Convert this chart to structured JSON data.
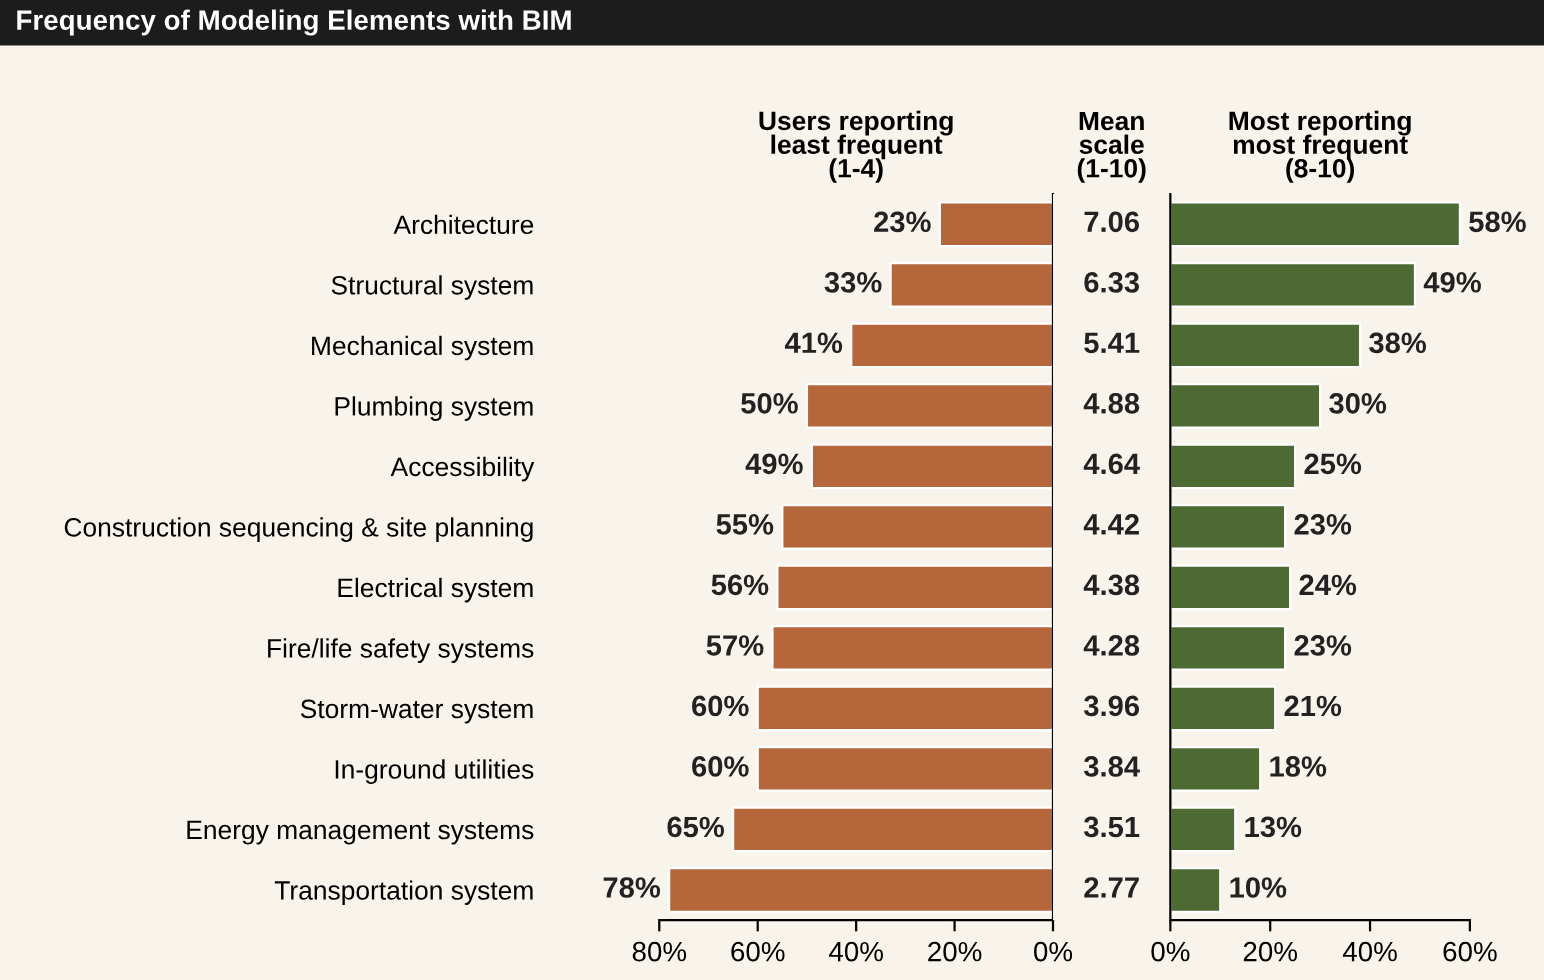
{
  "chart_data": [
    {
      "type": "bar",
      "orientation": "horizontal",
      "title": "Users reporting\nleast frequent\n(1-4)",
      "annotations": [
        "Frequency of Modeling Elements with BIM"
      ],
      "categories": [
        "Architecture",
        "Structural system",
        "Mechanical system",
        "Plumbing system",
        "Accessibility",
        "Construction sequencing & site planning",
        "Electrical system",
        "Fire/life safety systems",
        "Storm-water system",
        "In-ground utilities",
        "Energy management systems",
        "Transportation system"
      ],
      "values": [
        23,
        33,
        41,
        50,
        49,
        55,
        56,
        57,
        60,
        60,
        65,
        78
      ],
      "value_labels": [
        "23%",
        "33%",
        "41%",
        "50%",
        "49%",
        "55%",
        "56%",
        "57%",
        "60%",
        "60%",
        "65%",
        "78%"
      ],
      "color": "#b5663b",
      "xlim": [
        80,
        0
      ],
      "xticks": [
        {
          "value": 80,
          "label": "80%"
        },
        {
          "value": 60,
          "label": "60%"
        },
        {
          "value": 40,
          "label": "40%"
        },
        {
          "value": 20,
          "label": "20%"
        },
        {
          "value": 0,
          "label": "0%"
        }
      ],
      "grid": false,
      "legend": false
    },
    {
      "type": "other",
      "title": "Mean\nscale\n(1-10)",
      "categories": [
        null,
        null,
        null,
        null,
        null,
        null,
        null,
        null,
        null,
        null,
        null,
        null
      ],
      "values": [
        7.06,
        6.33,
        5.41,
        4.88,
        4.64,
        4.42,
        4.38,
        4.28,
        3.96,
        3.84,
        3.51,
        2.77
      ],
      "value_labels": [
        "7.06",
        "6.33",
        "5.41",
        "4.88",
        "4.64",
        "4.42",
        "4.38",
        "4.28",
        "3.96",
        "3.84",
        "3.51",
        "2.77"
      ]
    },
    {
      "type": "bar",
      "orientation": "horizontal",
      "title": "Most reporting\nmost frequent\n(8-10)",
      "categories": [
        null,
        null,
        null,
        null,
        null,
        null,
        null,
        null,
        null,
        null,
        null,
        null
      ],
      "values": [
        58,
        49,
        38,
        30,
        25,
        23,
        24,
        23,
        21,
        18,
        13,
        10
      ],
      "value_labels": [
        "58%",
        "49%",
        "38%",
        "30%",
        "25%",
        "23%",
        "24%",
        "23%",
        "21%",
        "18%",
        "13%",
        "10%"
      ],
      "color": "#4e6a33",
      "xlim": [
        0,
        60
      ],
      "xticks": [
        {
          "value": 0,
          "label": "0%"
        },
        {
          "value": 20,
          "label": "20%"
        },
        {
          "value": 40,
          "label": "40%"
        },
        {
          "value": 60,
          "label": "60%"
        }
      ],
      "tick_labels": "x",
      "grid": false,
      "legend": false
    }
  ]
}
